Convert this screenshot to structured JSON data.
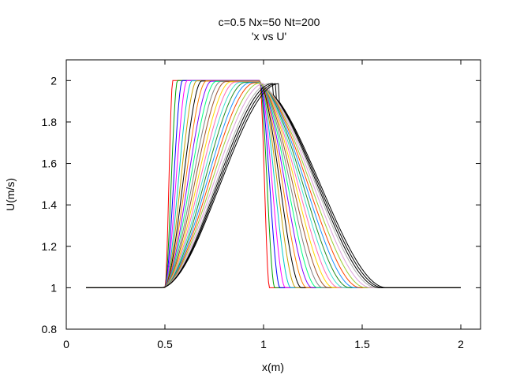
{
  "chart_data": {
    "type": "line",
    "title": "c=0.5 Nx=50 Nt=200",
    "subtitle": "'x vs U'",
    "xlabel": "x(m)",
    "ylabel": "U(m/s)",
    "xlim": [
      0,
      2.1
    ],
    "ylim": [
      0.8,
      2.1
    ],
    "xticks": [
      0,
      0.5,
      1,
      1.5,
      2
    ],
    "xtick_labels": [
      "0",
      "0.5",
      "1",
      "1.5",
      "2"
    ],
    "yticks": [
      0.8,
      1,
      1.2,
      1.4,
      1.6,
      1.8,
      2
    ],
    "ytick_labels": [
      "0.8",
      "1",
      "1.2",
      "1.4",
      "1.6",
      "1.8",
      "2"
    ],
    "grid": false,
    "legend": "none",
    "x_domain": [
      0.1,
      2.0
    ],
    "base_value": 1,
    "peak_value": 2,
    "initial_pulse": {
      "left_edge": [
        0.5,
        0.54
      ],
      "right_edge": [
        0.98,
        1.03
      ]
    },
    "series_colors": [
      "#ff0000",
      "#00a000",
      "#0000ff",
      "#ff00ff",
      "#00c8c8",
      "#c8a000",
      "#000000",
      "#ff8000",
      "#8000ff",
      "#00ff80",
      "#808080",
      "#a0522d",
      "#ffd700",
      "#ff69b4",
      "#40e0d0",
      "#228b22",
      "#1e90ff",
      "#ff4500",
      "#9acd32",
      "#dda0dd",
      "#b0b0b0",
      "#000000",
      "#000000",
      "#000000"
    ],
    "series": [
      {
        "left_edge": [
          0.5,
          0.54
        ],
        "right_edge": [
          0.98,
          1.03
        ],
        "peak": 2.0
      },
      {
        "left_edge": [
          0.499,
          0.564
        ],
        "right_edge": [
          0.979,
          1.057
        ],
        "peak": 2.0
      },
      {
        "left_edge": [
          0.498,
          0.589
        ],
        "right_edge": [
          0.978,
          1.084
        ],
        "peak": 2.0
      },
      {
        "left_edge": [
          0.497,
          0.613
        ],
        "right_edge": [
          0.977,
          1.111
        ],
        "peak": 2.0
      },
      {
        "left_edge": [
          0.496,
          0.638
        ],
        "right_edge": [
          0.976,
          1.139
        ],
        "peak": 1.999
      },
      {
        "left_edge": [
          0.495,
          0.662
        ],
        "right_edge": [
          0.975,
          1.166
        ],
        "peak": 1.999
      },
      {
        "left_edge": [
          0.494,
          0.687
        ],
        "right_edge": [
          0.974,
          1.193
        ],
        "peak": 1.998
      },
      {
        "left_edge": [
          0.493,
          0.711
        ],
        "right_edge": [
          0.973,
          1.22
        ],
        "peak": 1.998
      },
      {
        "left_edge": [
          0.492,
          0.736
        ],
        "right_edge": [
          0.972,
          1.247
        ],
        "peak": 1.997
      },
      {
        "left_edge": [
          0.491,
          0.76
        ],
        "right_edge": [
          0.971,
          1.274
        ],
        "peak": 1.996
      },
      {
        "left_edge": [
          0.49,
          0.785
        ],
        "right_edge": [
          0.97,
          1.301
        ],
        "peak": 1.996
      },
      {
        "left_edge": [
          0.489,
          0.809
        ],
        "right_edge": [
          0.969,
          1.329
        ],
        "peak": 1.995
      },
      {
        "left_edge": [
          0.488,
          0.834
        ],
        "right_edge": [
          0.968,
          1.356
        ],
        "peak": 1.994
      },
      {
        "left_edge": [
          0.487,
          0.858
        ],
        "right_edge": [
          0.967,
          1.383
        ],
        "peak": 1.993
      },
      {
        "left_edge": [
          0.486,
          0.883
        ],
        "right_edge": [
          0.966,
          1.41
        ],
        "peak": 1.992
      },
      {
        "left_edge": [
          0.485,
          0.907
        ],
        "right_edge": [
          0.965,
          1.437
        ],
        "peak": 1.991
      },
      {
        "left_edge": [
          0.484,
          0.932
        ],
        "right_edge": [
          0.964,
          1.464
        ],
        "peak": 1.99
      },
      {
        "left_edge": [
          0.483,
          0.956
        ],
        "right_edge": [
          0.963,
          1.491
        ],
        "peak": 1.989
      },
      {
        "left_edge": [
          0.482,
          0.981
        ],
        "right_edge": [
          0.962,
          1.519
        ],
        "peak": 1.988
      },
      {
        "left_edge": [
          0.481,
          1.005
        ],
        "right_edge": [
          0.961,
          1.546
        ],
        "peak": 1.987
      },
      {
        "left_edge": [
          0.48,
          1.03
        ],
        "right_edge": [
          0.96,
          1.573
        ],
        "peak": 1.986
      },
      {
        "left_edge": [
          0.479,
          1.046
        ],
        "right_edge": [
          0.959,
          1.59
        ],
        "peak": 1.986
      },
      {
        "left_edge": [
          0.478,
          1.062
        ],
        "right_edge": [
          0.958,
          1.607
        ],
        "peak": 1.985
      },
      {
        "left_edge": [
          0.477,
          1.078
        ],
        "right_edge": [
          0.957,
          1.624
        ],
        "peak": 1.985
      }
    ]
  }
}
